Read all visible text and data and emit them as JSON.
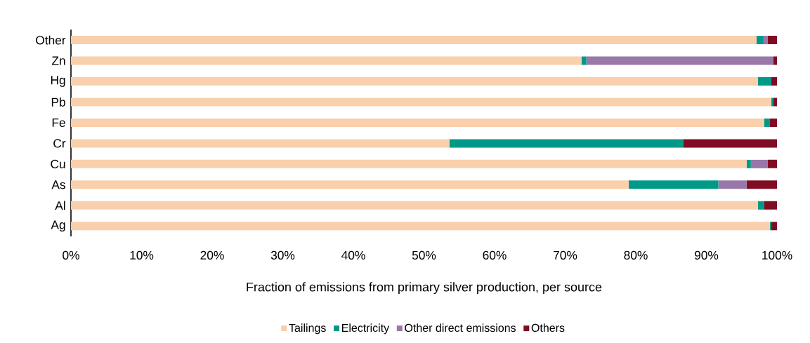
{
  "chart_data": {
    "type": "bar",
    "orientation": "horizontal",
    "stacked": true,
    "categories": [
      "Other",
      "Zn",
      "Hg",
      "Pb",
      "Fe",
      "Cr",
      "Cu",
      "As",
      "Al",
      "Ag"
    ],
    "series": [
      {
        "name": "Tailings",
        "color": "#f9cfac",
        "values": [
          97.1,
          72.3,
          97.3,
          99.2,
          98.2,
          53.6,
          95.7,
          79.0,
          97.3,
          99.0
        ]
      },
      {
        "name": "Electricity",
        "color": "#009988",
        "values": [
          1.0,
          0.7,
          1.9,
          0.3,
          0.8,
          33.1,
          0.6,
          12.7,
          0.9,
          0.2
        ]
      },
      {
        "name": "Other direct emissions",
        "color": "#9878a8",
        "values": [
          0.6,
          26.5,
          0,
          0,
          0,
          0,
          2.4,
          4.0,
          0,
          0
        ]
      },
      {
        "name": "Others",
        "color": "#800c24",
        "values": [
          1.3,
          0.5,
          0.8,
          0.5,
          1.0,
          13.3,
          1.3,
          4.3,
          1.8,
          0.8
        ]
      }
    ],
    "xlim": [
      0,
      100
    ],
    "xticks": [
      {
        "value": 0,
        "label": "0%"
      },
      {
        "value": 10,
        "label": "10%"
      },
      {
        "value": 20,
        "label": "20%"
      },
      {
        "value": 30,
        "label": "30%"
      },
      {
        "value": 40,
        "label": "40%"
      },
      {
        "value": 50,
        "label": "50%"
      },
      {
        "value": 60,
        "label": "60%"
      },
      {
        "value": 70,
        "label": "70%"
      },
      {
        "value": 80,
        "label": "80%"
      },
      {
        "value": 90,
        "label": "90%"
      },
      {
        "value": 100,
        "label": "100%"
      }
    ],
    "xlabel": "Fraction of emissions from primary silver production, per source",
    "legend": "bottom"
  }
}
